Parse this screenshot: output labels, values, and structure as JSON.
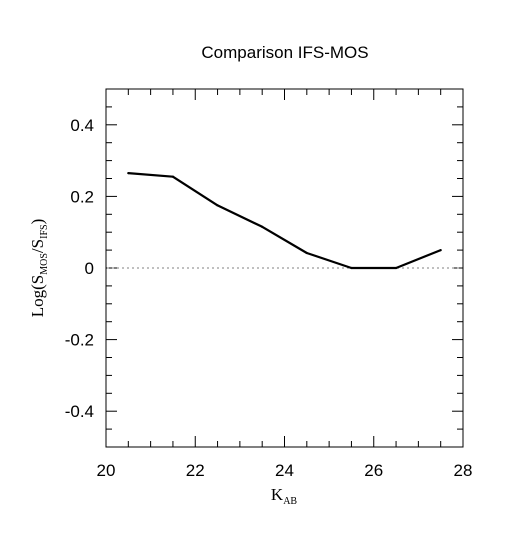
{
  "chart_data": {
    "type": "line",
    "title": "Comparison IFS-MOS",
    "xlabel": {
      "main": "K",
      "sub": "AB"
    },
    "ylabel": {
      "prefix": "Log(S",
      "sub1": "MOS",
      "mid": "/S",
      "sub2": "IFS",
      "suffix": ")"
    },
    "xlim": [
      20,
      28
    ],
    "ylim": [
      -0.5,
      0.5
    ],
    "x_ticks": [
      20,
      22,
      24,
      26,
      28
    ],
    "y_ticks": [
      0.4,
      0.2,
      0,
      -0.2,
      -0.4
    ],
    "y_tick_labels": [
      "0.4",
      "0.2",
      "0",
      "-0.2",
      "-0.4"
    ],
    "x_minor_step": 0.5,
    "y_minor_step": 0.05,
    "grid": false,
    "reference_line": {
      "y": 0,
      "style": "dotted",
      "color": "#9a9a9a"
    },
    "series": [
      {
        "x": [
          20.5,
          21.5,
          22.5,
          23.5,
          24.5,
          25.5,
          26.5,
          27.5
        ],
        "y": [
          0.265,
          0.255,
          0.175,
          0.115,
          0.042,
          0.0,
          0.0,
          0.05
        ],
        "color": "#000000"
      }
    ]
  }
}
